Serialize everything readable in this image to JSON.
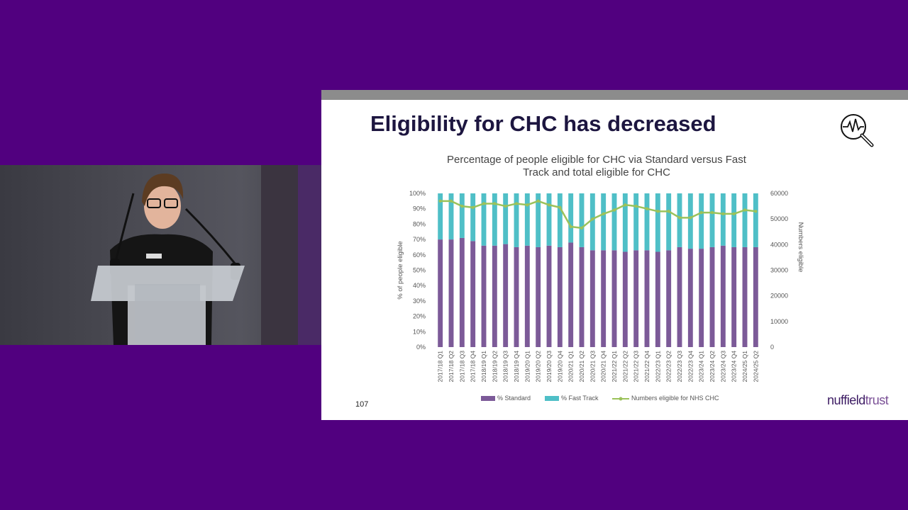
{
  "slide": {
    "title": "Eligibility for CHC has decreased",
    "page_number": "107",
    "logo_part1": "nuffield",
    "logo_part2": "trust"
  },
  "colors": {
    "background": "#51007f",
    "standard": "#7c5a98",
    "fast_track": "#4fbfc7",
    "numbers_line": "#9bc25a",
    "title_text": "#1d1640"
  },
  "icons": {
    "top_right": "search-pulse-icon"
  },
  "chart_data": {
    "type": "bar",
    "title": "Percentage of people eligible for CHC via Standard versus Fast Track and total eligible for CHC",
    "title_lines": [
      "Percentage of people eligible for CHC via Standard versus Fast",
      "Track and total eligible for CHC"
    ],
    "ylabel": "% of people eligible",
    "y2label": "Numbers eligible",
    "ylim": [
      0,
      100
    ],
    "y2lim": [
      0,
      60000
    ],
    "yticks": [
      "0%",
      "10%",
      "20%",
      "30%",
      "40%",
      "50%",
      "60%",
      "70%",
      "80%",
      "90%",
      "100%"
    ],
    "y2ticks": [
      "0",
      "10000",
      "20000",
      "30000",
      "40000",
      "50000",
      "60000"
    ],
    "categories": [
      "2017/18 Q1",
      "2017/18 Q2",
      "2017/18 Q3",
      "2017/18 Q4",
      "2018/19 Q1",
      "2018/19 Q2",
      "2018/19 Q3",
      "2018/19 Q4",
      "2019/20 Q1",
      "2019/20 Q2",
      "2019/20 Q3",
      "2019/20 Q4",
      "2020/21 Q1",
      "2020/21 Q2",
      "2020/21 Q3",
      "2020/21 Q4",
      "2021/22 Q1",
      "2021/22 Q2",
      "2021/22 Q3",
      "2021/22 Q4",
      "2022/23 Q1",
      "2022/23 Q2",
      "2022/23 Q3",
      "2022/23 Q4",
      "2023/24 Q1",
      "2023/24 Q2",
      "2023/24 Q3",
      "2023/24 Q4",
      "2024/25 Q1",
      "2024/25 Q2"
    ],
    "series": [
      {
        "name": "% Standard",
        "kind": "stacked-bar",
        "values": [
          70,
          70,
          71,
          69,
          66,
          66,
          67,
          65,
          66,
          65,
          66,
          65,
          68,
          65,
          63,
          63,
          63,
          62,
          63,
          63,
          62,
          63,
          65,
          64,
          64,
          65,
          66,
          65,
          65,
          65
        ]
      },
      {
        "name": "% Fast Track",
        "kind": "stacked-bar",
        "values": [
          30,
          30,
          29,
          31,
          34,
          34,
          33,
          35,
          34,
          35,
          34,
          35,
          32,
          35,
          37,
          37,
          37,
          38,
          37,
          37,
          38,
          37,
          35,
          36,
          36,
          35,
          34,
          35,
          35,
          35
        ]
      },
      {
        "name": "Numbers eligible for NHS CHC",
        "kind": "line",
        "axis": "right",
        "values": [
          57000,
          57000,
          55000,
          54500,
          56000,
          56000,
          55000,
          56000,
          55500,
          57000,
          55500,
          54500,
          47000,
          46500,
          50000,
          52000,
          53500,
          55500,
          55000,
          54000,
          53000,
          53000,
          50500,
          50500,
          52500,
          52500,
          52000,
          52000,
          53500,
          53000
        ]
      }
    ],
    "legend": [
      "% Standard",
      "% Fast Track",
      "Numbers eligible for NHS CHC"
    ],
    "legend_position": "bottom"
  }
}
